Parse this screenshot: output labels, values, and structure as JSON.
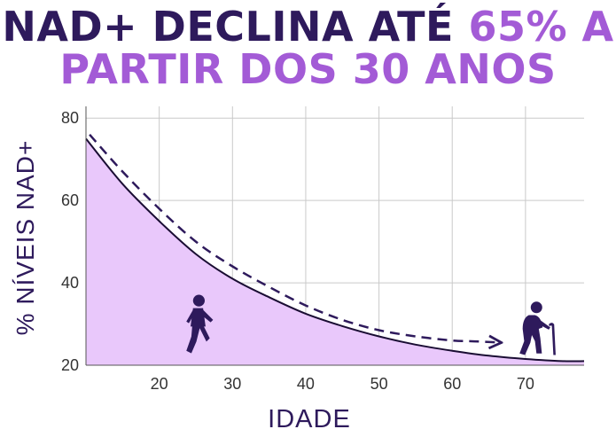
{
  "title": {
    "part1": "NAD+ DECLINA ATÉ",
    "part2": "65% A",
    "line2": "PARTIR DOS 30 ANOS"
  },
  "colors": {
    "dark": "#2e1a5c",
    "accent": "#a35bd6",
    "fill": "#e9c8fb",
    "grid": "#c9c9c9"
  },
  "chart_data": {
    "type": "area",
    "xlabel": "IDADE",
    "ylabel": "% NÍVEIS NAD+",
    "xlim": [
      10,
      78
    ],
    "ylim": [
      20,
      85
    ],
    "x_ticks": [
      20,
      30,
      40,
      50,
      60,
      70
    ],
    "y_ticks": [
      20,
      40,
      60,
      80
    ],
    "grid": true,
    "series": [
      {
        "style": "solid-area",
        "x": [
          10,
          15,
          20,
          25,
          30,
          35,
          40,
          45,
          50,
          55,
          60,
          65,
          70,
          75,
          78
        ],
        "y": [
          75,
          64,
          55,
          47,
          41,
          36.5,
          32.5,
          29.5,
          27,
          25,
          23.5,
          22.3,
          21.5,
          21,
          21
        ]
      },
      {
        "style": "dashed-arrow",
        "x": [
          10.5,
          15,
          20,
          25,
          30,
          35,
          40,
          45,
          50,
          55,
          60,
          63,
          66.5
        ],
        "y": [
          76,
          67,
          58,
          50,
          44,
          39,
          34.5,
          31,
          28.5,
          27,
          26,
          25.8,
          25.5
        ]
      }
    ],
    "annotations": [
      {
        "icon": "walking-person-icon",
        "x": 25.3,
        "y": 30
      },
      {
        "icon": "elderly-person-with-cane-icon",
        "x": 71.5,
        "y": 29
      }
    ]
  }
}
